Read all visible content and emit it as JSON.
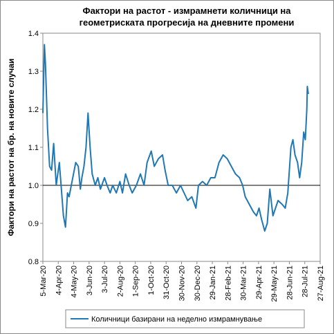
{
  "chart_data": {
    "type": "line",
    "title": [
      "Фактори на растот - измрамнети количници на",
      "геометриската прогресија на дневните промени"
    ],
    "y_label": "Фактори на растот  на бр. на новите случаи",
    "x": [
      "2020-03-05",
      "2020-03-08",
      "2020-03-10",
      "2020-03-14",
      "2020-03-18",
      "2020-03-22",
      "2020-03-26",
      "2020-03-31",
      "2020-04-06",
      "2020-04-14",
      "2020-04-18",
      "2020-04-22",
      "2020-04-25",
      "2020-05-08",
      "2020-05-13",
      "2020-05-17",
      "2020-05-20",
      "2020-05-24",
      "2020-05-28",
      "2020-06-01",
      "2020-06-05",
      "2020-06-09",
      "2020-06-15",
      "2020-06-20",
      "2020-06-25",
      "2020-07-03",
      "2020-07-08",
      "2020-07-14",
      "2020-07-19",
      "2020-07-26",
      "2020-08-02",
      "2020-08-07",
      "2020-08-13",
      "2020-08-20",
      "2020-08-26",
      "2020-09-03",
      "2020-09-11",
      "2020-09-18",
      "2020-09-24",
      "2020-10-02",
      "2020-10-08",
      "2020-10-16",
      "2020-10-24",
      "2020-10-29",
      "2020-11-04",
      "2020-11-12",
      "2020-11-20",
      "2020-11-28",
      "2020-12-05",
      "2020-12-12",
      "2020-12-20",
      "2020-12-28",
      "2021-01-02",
      "2021-01-10",
      "2021-01-18",
      "2021-01-26",
      "2021-02-03",
      "2021-02-11",
      "2021-02-19",
      "2021-02-27",
      "2021-03-07",
      "2021-03-15",
      "2021-03-23",
      "2021-03-29",
      "2021-04-03",
      "2021-04-11",
      "2021-04-19",
      "2021-04-25",
      "2021-04-30",
      "2021-05-05",
      "2021-05-11",
      "2021-05-16",
      "2021-05-21",
      "2021-05-27",
      "2021-06-01",
      "2021-06-06",
      "2021-06-14",
      "2021-06-20",
      "2021-06-25",
      "2021-07-01",
      "2021-07-05",
      "2021-07-09",
      "2021-07-14",
      "2021-07-18",
      "2021-07-22",
      "2021-07-26",
      "2021-07-29",
      "2021-08-01",
      "2021-08-02",
      "2021-08-04"
    ],
    "series": [
      {
        "name": "Количници базирани  на неделно измрамнување",
        "color": "#1f77b4",
        "values": [
          1.19,
          1.37,
          1.32,
          1.15,
          1.05,
          1.04,
          1.11,
          1.0,
          1.06,
          0.92,
          0.89,
          0.98,
          0.97,
          1.06,
          1.05,
          0.99,
          1.02,
          1.05,
          1.1,
          1.19,
          1.1,
          1.03,
          1.0,
          1.02,
          0.99,
          1.02,
          1.0,
          0.98,
          1.0,
          0.98,
          1.01,
          0.98,
          1.03,
          1.0,
          0.98,
          1.0,
          1.03,
          1.0,
          1.06,
          1.09,
          1.05,
          1.07,
          1.08,
          1.04,
          1.0,
          1.0,
          0.98,
          1.0,
          0.98,
          0.96,
          0.97,
          0.94,
          1.0,
          1.01,
          1.0,
          1.02,
          1.02,
          1.06,
          1.08,
          1.07,
          1.05,
          1.03,
          1.02,
          1.0,
          0.97,
          0.95,
          0.93,
          0.92,
          0.94,
          0.91,
          0.88,
          0.9,
          0.99,
          0.92,
          0.94,
          0.96,
          0.95,
          0.94,
          0.98,
          1.1,
          1.12,
          1.08,
          1.06,
          1.02,
          1.06,
          1.14,
          1.12,
          1.2,
          1.26,
          1.24
        ]
      }
    ],
    "xlim": [
      "2020-03-05",
      "2021-08-27"
    ],
    "xticks": [
      {
        "value": "2020-03-05",
        "label": "5-Mar-20"
      },
      {
        "value": "2020-04-04",
        "label": "4-Apr-20"
      },
      {
        "value": "2020-05-04",
        "label": "4-May-20"
      },
      {
        "value": "2020-06-03",
        "label": "3-Jun-20"
      },
      {
        "value": "2020-07-03",
        "label": "3-Jul-20"
      },
      {
        "value": "2020-08-02",
        "label": "2-Aug-20"
      },
      {
        "value": "2020-09-01",
        "label": "1-Sep-20"
      },
      {
        "value": "2020-10-01",
        "label": "1-Oct-20"
      },
      {
        "value": "2020-10-31",
        "label": "31-Oct-20"
      },
      {
        "value": "2020-11-30",
        "label": "30-Nov-20"
      },
      {
        "value": "2020-12-30",
        "label": "30-Dec-20"
      },
      {
        "value": "2021-01-29",
        "label": "29-Jan-21"
      },
      {
        "value": "2021-02-28",
        "label": "28-Feb-21"
      },
      {
        "value": "2021-03-30",
        "label": "30-Mar-21"
      },
      {
        "value": "2021-04-29",
        "label": "29-Apr-21"
      },
      {
        "value": "2021-05-29",
        "label": "29-May-21"
      },
      {
        "value": "2021-06-28",
        "label": "28-Jun-21"
      },
      {
        "value": "2021-07-28",
        "label": "28-Jul-21"
      },
      {
        "value": "2021-08-27",
        "label": "27-Aug-21"
      }
    ],
    "ylim": [
      0.8,
      1.4
    ],
    "yticks": [
      0.8,
      0.9,
      {
        "value": 1.0,
        "label": "1.0"
      },
      1.1,
      1.2,
      1.3,
      1.4
    ],
    "reference_line": 1.0,
    "legend": "bottom"
  }
}
